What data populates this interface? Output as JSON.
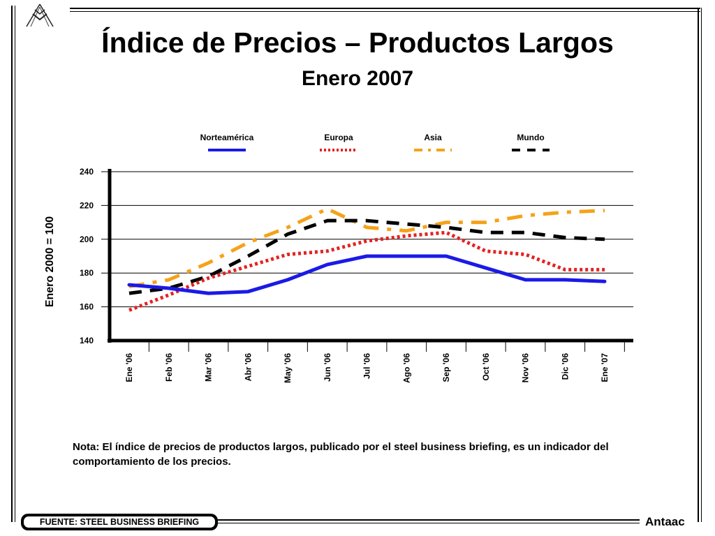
{
  "slide": {
    "title": "Índice de Precios – Productos Largos",
    "subtitle": "Enero 2007",
    "note": "Nota: El índice de precios de productos largos, publicado por el steel business briefing, es un indicador del comportamiento de los precios.",
    "source": "FUENTE: STEEL BUSINESS BRIEFING",
    "brand": "Antaac"
  },
  "chart_data": {
    "type": "line",
    "ylabel": "Enero 2000 = 100",
    "ylim": [
      140,
      240
    ],
    "yticks": [
      140,
      160,
      180,
      200,
      220,
      240
    ],
    "grid": true,
    "legend_position": "top",
    "categories": [
      "Ene '06",
      "Feb '06",
      "Mar '06",
      "Abr '06",
      "May '06",
      "Jun '06",
      "Jul '06",
      "Ago '06",
      "Sep '06",
      "Oct '06",
      "Nov '06",
      "Dic '06",
      "Ene '07"
    ],
    "series": [
      {
        "name": "Norteamérica",
        "color": "#1a1ae6",
        "style": "solid",
        "values": [
          173,
          171,
          168,
          169,
          176,
          185,
          190,
          190,
          190,
          183,
          176,
          176,
          175
        ]
      },
      {
        "name": "Europa",
        "color": "#e32222",
        "style": "dotted",
        "values": [
          158,
          167,
          177,
          184,
          191,
          193,
          199,
          202,
          204,
          193,
          191,
          182,
          182
        ]
      },
      {
        "name": "Asia",
        "color": "#f5a21a",
        "style": "dashdot",
        "values": [
          172,
          176,
          186,
          198,
          207,
          218,
          207,
          205,
          210,
          210,
          214,
          216,
          217
        ]
      },
      {
        "name": "Mundo",
        "color": "#000000",
        "style": "dashed",
        "values": [
          168,
          171,
          178,
          190,
          203,
          211,
          211,
          209,
          207,
          204,
          204,
          201,
          200
        ]
      }
    ]
  }
}
